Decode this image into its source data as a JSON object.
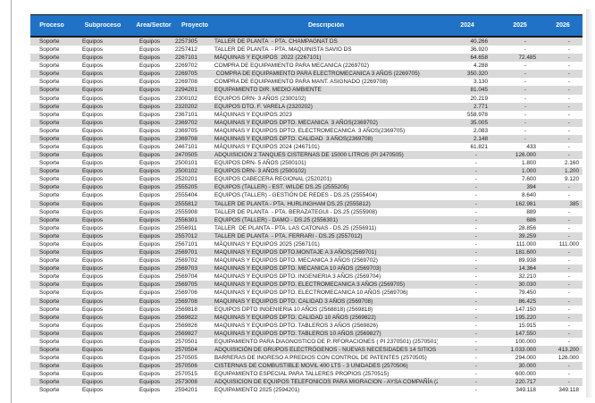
{
  "colors": {
    "header_bg": "#1F72C6",
    "header_text": "#FFFFFF",
    "row_stripe": "#D9D9D9",
    "row_plain": "#FFFFFF",
    "header_border": "#1A1A1A"
  },
  "table": {
    "headers": [
      "Proceso",
      "Subproceso",
      "Área/Sector",
      "Proyecto",
      "Descripción",
      "2024",
      "2025",
      "2026"
    ],
    "rows": [
      [
        "Soporte",
        "Equipos",
        "Equipos",
        "2257305",
        "TALLER DE PLANTA  - PTA. CHAMPAGNAT DS",
        "40.266",
        "-",
        "-"
      ],
      [
        "Soporte",
        "Equipos",
        "Equipos",
        "2257412",
        "TALLER DE PLANTA  - PTA. MAQUINISTA SAVIO DS",
        "36.920",
        "-",
        "-"
      ],
      [
        "Soporte",
        "Equipos",
        "Equipos",
        "2267101",
        "MÁQUINAS Y EQUIPOS  2022 (2267101)",
        "64.658",
        "72.485",
        "-"
      ],
      [
        "Soporte",
        "Equipos",
        "Equipos",
        "2269702",
        "COMPRA DE EQUIPAMIENTO PARA MECANICA (2269702)",
        "4.288",
        "-",
        "-"
      ],
      [
        "Soporte",
        "Equipos",
        "Equipos",
        "2269705",
        " COMPRA DE EQUIPAMIENTO PARA ELECTROMECANICA 3 AÑOS (2269705)",
        "350.320",
        "-",
        "-"
      ],
      [
        "Soporte",
        "Equipos",
        "Equipos",
        "2269708",
        "COMPRA DE EQUIPAMIENTO PARA MANT. ASIGNADO (2269708)",
        "3.130",
        "-",
        "-"
      ],
      [
        "Soporte",
        "Equipos",
        "Equipos",
        "2294201",
        "EQUIPAMIENTO DIR. MEDIO AMBIENTE",
        "81.045",
        "-",
        "-"
      ],
      [
        "Soporte",
        "Equipos",
        "Equipos",
        "2300102",
        "EQUIPOS DRN- 3 AÑOS (2300102)",
        "20.219",
        "-",
        "-"
      ],
      [
        "Soporte",
        "Equipos",
        "Equipos",
        "2320202",
        "EQUIPOS DTO. F. VARELA (2320202)",
        "2.771",
        "-",
        "-"
      ],
      [
        "Soporte",
        "Equipos",
        "Equipos",
        "2367101",
        "MÁQUINAS Y EQUIPOS 2023",
        "558.978",
        "-",
        "-"
      ],
      [
        "Soporte",
        "Equipos",
        "Equipos",
        "2369702",
        "MAQUINAS Y EQUIPOS DPTO. MECANICA  3 AÑOS(2369702)",
        "35.005",
        "-",
        "-"
      ],
      [
        "Soporte",
        "Equipos",
        "Equipos",
        "2369705",
        "MAQUINAS Y EQUIPOS DPTO. ELECTROMECANICA  3 AÑOS(2369705)",
        "2.083",
        "-",
        "-"
      ],
      [
        "Soporte",
        "Equipos",
        "Equipos",
        "2369708",
        "MAQUINAS Y EQUIPOS DPTO. CALIDAD  3 AÑOS(2369708)",
        "2.148",
        "-",
        "-"
      ],
      [
        "Soporte",
        "Equipos",
        "Equipos",
        "2467101",
        "MÁQUINAS Y EQUIPOS 2024 (2467101)",
        "61.821",
        "433",
        "-"
      ],
      [
        "Soporte",
        "Equipos",
        "Equipos",
        "2470505",
        "ADQUISICIÓN 2 TANQUES CISTERNAS DE 15000 LITROS (PI 2470505)",
        "-",
        "126.000",
        "-"
      ],
      [
        "Soporte",
        "Equipos",
        "Equipos",
        "2500101",
        "EQUIPOS DRN- 5 AÑOS (2500101)",
        "-",
        "1.800",
        "2.160"
      ],
      [
        "Soporte",
        "Equipos",
        "Equipos",
        "2500102",
        "EQUIPOS DRN- 3 AÑOS (2500102)",
        "-",
        "1.000",
        "1.200"
      ],
      [
        "Soporte",
        "Equipos",
        "Equipos",
        "2520201",
        "EQUIPOS CABECERA REGIONAL (2520201)",
        "-",
        "7.600",
        "9.120"
      ],
      [
        "Soporte",
        "Equipos",
        "Equipos",
        "2555205",
        "EQUIPOS (TALLER) - EST. WILDE DS.25 (2555205)",
        "-",
        "394",
        "-"
      ],
      [
        "Soporte",
        "Equipos",
        "Equipos",
        "2555404",
        "EQUIPOS (TALLER) - GESTIÓN DE REDES - DS.25 (2555404)",
        "-",
        "8.640",
        "-"
      ],
      [
        "Soporte",
        "Equipos",
        "Equipos",
        "2555812",
        "TALLER DE PLANTA - PTA. HURLINGHAM DS.25 (2555812)",
        "-",
        "162.981",
        "385"
      ],
      [
        "Soporte",
        "Equipos",
        "Equipos",
        "2555908",
        "TALLER DE PLANTA  - PTA. BERAZATEGUI - DS.25 (2555908)",
        "-",
        "889",
        "-"
      ],
      [
        "Soporte",
        "Equipos",
        "Equipos",
        "2556301",
        "EQUIPOS (TALLER) - DAMO - DS.25 (2556301)",
        "-",
        "686",
        "-"
      ],
      [
        "Soporte",
        "Equipos",
        "Equipos",
        "2556911",
        "TALLER  DE PLANTA - PTA. LAS CATONAS - DS.25 (2556911)",
        "-",
        "28.856",
        "-"
      ],
      [
        "Soporte",
        "Equipos",
        "Equipos",
        "2557012",
        "TALLER DE PLANTA  - PTA. FERRARI - DS.25 (2557012)",
        "-",
        "39.259",
        "-"
      ],
      [
        "Soporte",
        "Equipos",
        "Equipos",
        "2567101",
        "MÁQUINAS Y EQUIPOS 2025 (2567101)",
        "-",
        "111.000",
        "111.000"
      ],
      [
        "Soporte",
        "Equipos",
        "Equipos",
        "2569701",
        "MAQUINAS Y EQUIPOS DPTO.MONTAJE A 3 AÑOS(2569701)",
        "-",
        "181.600",
        "-"
      ],
      [
        "Soporte",
        "Equipos",
        "Equipos",
        "2569702",
        "MAQUINAS Y EQUIPOS DPTO. MECANICA 3 AÑOS (2569702)",
        "-",
        "89.938",
        "-"
      ],
      [
        "Soporte",
        "Equipos",
        "Equipos",
        "2569703",
        "MAQUINAS Y EQUIPOS DPTO. MECANICA 10 AÑOS (2569703)",
        "-",
        "14.364",
        "-"
      ],
      [
        "Soporte",
        "Equipos",
        "Equipos",
        "2569704",
        "MAQUINAS Y EQUIPOS DPTO. INGENIERIA 3 AÑOS (2569704)",
        "-",
        "32.210",
        "-"
      ],
      [
        "Soporte",
        "Equipos",
        "Equipos",
        "2569705",
        "MAQUINAS Y EQUIPOS DPTO. ELECTROMECANICA 3 AÑOS (2569705)",
        "-",
        "30.030",
        "-"
      ],
      [
        "Soporte",
        "Equipos",
        "Equipos",
        "2569706",
        "MAQUINAS Y EQUIPOS DPTO. ELECTROMECANICA 10 AÑOS (2569706)",
        "-",
        "79.450",
        "-"
      ],
      [
        "Soporte",
        "Equipos",
        "Equipos",
        "2569708",
        "MAQUINAS Y EQUIPOS DPTO. CALIDAD 3 AÑOS (2569708)",
        "-",
        "86.425",
        "-"
      ],
      [
        "Soporte",
        "Equipos",
        "Equipos",
        "2569818",
        "EQUIPOS DPTO INGENIERIA 10 AÑOS (2568818) (2569818)",
        "-",
        "147.150",
        "-"
      ],
      [
        "Soporte",
        "Equipos",
        "Equipos",
        "2569822",
        "MAQUINAS Y EQUIPOS DPTO. CALIDAD 10 AÑOS (2569822)",
        "-",
        "195.220",
        "-"
      ],
      [
        "Soporte",
        "Equipos",
        "Equipos",
        "2569826",
        "MAQUINAS Y EQUIPOS DPTO. TABLEROS 3 AÑOS (2569826)",
        "-",
        "15.915",
        "-"
      ],
      [
        "Soporte",
        "Equipos",
        "Equipos",
        "2569827",
        "MAQUINAS Y EQUIPOS DPTO. TABLEROS 10 AÑOS (2569827)",
        "-",
        "147.550",
        "-"
      ],
      [
        "Soporte",
        "Equipos",
        "Equipos",
        "2570501",
        "EQUIPAMIENTO PARA DIAGNOSTICO DE P..RFORACIONES ( PI 2370501) (2570501)",
        "-",
        "100.000",
        "-"
      ],
      [
        "Soporte",
        "Equipos",
        "Equipos",
        "2570504",
        "ADQUISICIÓN DE GRUPOS ELECTRÓGENOS - NUEVAS NECESIDADES 14 SITIOS (2570504)",
        "-",
        "1.033.000",
        "413.200"
      ],
      [
        "Soporte",
        "Equipos",
        "Equipos",
        "2570505",
        "BARRERAS DE INGRESO A PREDIOS CON CONTROL DE PATENTES (2570505)",
        "-",
        "294.000",
        "126.000"
      ],
      [
        "Soporte",
        "Equipos",
        "Equipos",
        "2570506",
        "CISTERNAS DE COMBUSTIBLE MOVIL 400 LTS - 3 UNIDADES (2570506)",
        "-",
        "30.000",
        "-"
      ],
      [
        "Soporte",
        "Equipos",
        "Equipos",
        "2570515",
        "EQUIPAMIENTO ESPECIAL PARA TALLERES PROPIOS (2570515)",
        "-",
        "600.000",
        "-"
      ],
      [
        "Soporte",
        "Equipos",
        "Equipos",
        "2573008",
        "ADQUISICION DE EQUIPOS TELEFONICOS PARA MIGRACION - AYSA COMPAÑÍA (2573008)",
        "-",
        "220.717",
        "-"
      ],
      [
        "Soporte",
        "Equipos",
        "Equipos",
        "2594201",
        "EQUIPAMIENTO 2025 (2594201)",
        "-",
        "349.118",
        "349.118"
      ]
    ]
  }
}
